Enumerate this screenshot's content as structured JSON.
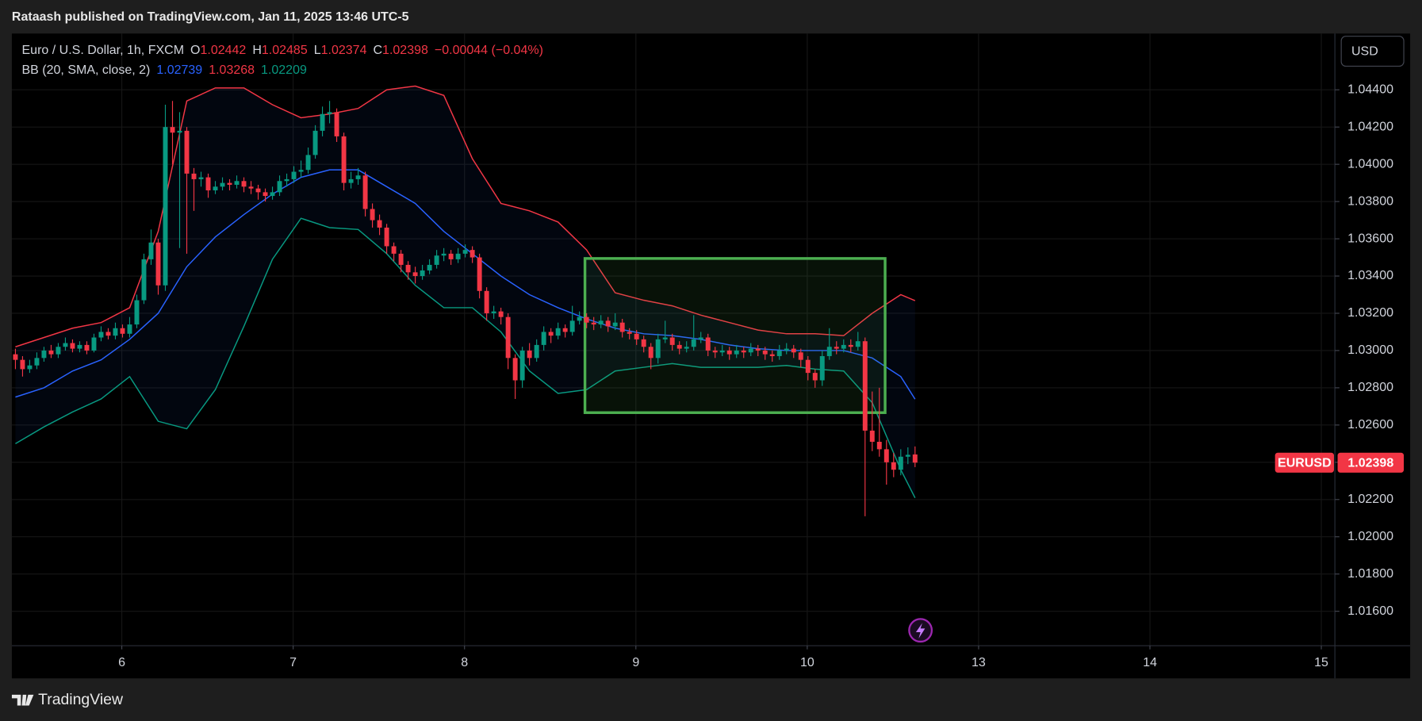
{
  "header": {
    "published": "Rataash published on TradingView.com, Jan 11, 2025 13:46 UTC-5"
  },
  "footer": {
    "brand": "TradingView"
  },
  "chart_data": {
    "type": "candlestick",
    "title": "Euro / U.S. Dollar, 1h, FXCM",
    "ohlc_labels": [
      "O",
      "H",
      "L",
      "C"
    ],
    "change": "−0.00044 (−0.04%)",
    "currency": "USD",
    "symbol": "EURUSD",
    "up_color": "#089981",
    "down_color": "#f23645",
    "xlim": [
      -0.5,
      184.8
    ],
    "xticks": [
      {
        "value": 14.9,
        "label": "6"
      },
      {
        "value": 38.9,
        "label": "7"
      },
      {
        "value": 62.9,
        "label": "8"
      },
      {
        "value": 86.9,
        "label": "9"
      },
      {
        "value": 110.9,
        "label": "10"
      },
      {
        "value": 134.9,
        "label": "13"
      },
      {
        "value": 158.9,
        "label": "14"
      },
      {
        "value": 182.9,
        "label": "15"
      }
    ],
    "ylim": [
      1.01415,
      1.04702
    ],
    "yticks": [
      {
        "value": 1.016,
        "label": "1.01600"
      },
      {
        "value": 1.018,
        "label": "1.01800"
      },
      {
        "value": 1.02,
        "label": "1.02000"
      },
      {
        "value": 1.022,
        "label": "1.02200"
      },
      {
        "value": 1.024,
        "label": "1.02400"
      },
      {
        "value": 1.026,
        "label": "1.02600"
      },
      {
        "value": 1.028,
        "label": "1.02800"
      },
      {
        "value": 1.03,
        "label": "1.03000"
      },
      {
        "value": 1.032,
        "label": "1.03200"
      },
      {
        "value": 1.034,
        "label": "1.03400"
      },
      {
        "value": 1.036,
        "label": "1.03600"
      },
      {
        "value": 1.038,
        "label": "1.03800"
      },
      {
        "value": 1.04,
        "label": "1.04000"
      },
      {
        "value": 1.042,
        "label": "1.04200"
      },
      {
        "value": 1.044,
        "label": "1.04400"
      }
    ],
    "grid": true,
    "open": [
      1.0298,
      1.0295,
      1.029,
      1.0292,
      1.0296,
      1.03,
      1.0298,
      1.0302,
      1.0304,
      1.0301,
      1.0303,
      1.03,
      1.0307,
      1.031,
      1.0308,
      1.0312,
      1.0309,
      1.0314,
      1.0327,
      1.0349,
      1.0358,
      1.0335,
      1.042,
      1.0417,
      1.0418,
      1.0395,
      1.0392,
      1.0393,
      1.0386,
      1.0388,
      1.039,
      1.0389,
      1.0391,
      1.0388,
      1.0387,
      1.0385,
      1.0383,
      1.0385,
      1.0391,
      1.0392,
      1.0396,
      1.0397,
      1.0405,
      1.0418,
      1.0427,
      1.0428,
      1.0415,
      1.039,
      1.0392,
      1.0394,
      1.0376,
      1.037,
      1.0366,
      1.0356,
      1.0352,
      1.0346,
      1.0342,
      1.034,
      1.0343,
      1.0346,
      1.0351,
      1.0352,
      1.0349,
      1.0352,
      1.0354,
      1.035,
      1.0332,
      1.032,
      1.0321,
      1.0318,
      1.0296,
      1.0284,
      1.03,
      1.0296,
      1.0303,
      1.031,
      1.0308,
      1.0312,
      1.031,
      1.0316,
      1.0318,
      1.0315,
      1.0314,
      1.0316,
      1.0313,
      1.0315,
      1.031,
      1.0309,
      1.0306,
      1.0302,
      1.0296,
      1.0306,
      1.0307,
      1.0303,
      1.0301,
      1.0302,
      1.0306,
      1.0307,
      1.03,
      1.0299,
      1.03,
      1.0298,
      1.03,
      1.0299,
      1.0301,
      1.03,
      1.0298,
      1.0297,
      1.03,
      1.0301,
      1.0299,
      1.0295,
      1.0288,
      1.0284,
      1.0297,
      1.0302,
      1.0301,
      1.0303,
      1.0302,
      1.0305,
      1.0257,
      1.0251,
      1.0247,
      1.024,
      1.0236,
      1.0243,
      1.02442
    ],
    "high": [
      1.0301,
      1.0297,
      1.0295,
      1.0299,
      1.0302,
      1.0303,
      1.0304,
      1.0307,
      1.0306,
      1.0305,
      1.0305,
      1.0309,
      1.0313,
      1.0312,
      1.0315,
      1.0314,
      1.0318,
      1.033,
      1.0352,
      1.0365,
      1.036,
      1.0432,
      1.0434,
      1.0428,
      1.042,
      1.0398,
      1.0396,
      1.0395,
      1.0391,
      1.0393,
      1.0392,
      1.0394,
      1.0393,
      1.0391,
      1.0389,
      1.0387,
      1.0388,
      1.0394,
      1.0395,
      1.0399,
      1.0402,
      1.0409,
      1.0421,
      1.0431,
      1.0434,
      1.043,
      1.0417,
      1.0396,
      1.0398,
      1.0396,
      1.0379,
      1.0373,
      1.0368,
      1.0358,
      1.0354,
      1.0348,
      1.0345,
      1.0346,
      1.0349,
      1.0354,
      1.0355,
      1.0354,
      1.0355,
      1.0357,
      1.0356,
      1.0352,
      1.0334,
      1.0324,
      1.0323,
      1.032,
      1.0298,
      1.0302,
      1.0304,
      1.0306,
      1.0313,
      1.0312,
      1.0315,
      1.0314,
      1.0324,
      1.0321,
      1.032,
      1.0318,
      1.0319,
      1.0318,
      1.032,
      1.0317,
      1.0312,
      1.0311,
      1.0308,
      1.0304,
      1.0309,
      1.0316,
      1.0309,
      1.0305,
      1.0305,
      1.0319,
      1.031,
      1.0309,
      1.0302,
      1.0303,
      1.0302,
      1.0303,
      1.0302,
      1.0304,
      1.0303,
      1.0302,
      1.03,
      1.0303,
      1.0304,
      1.0303,
      1.0301,
      1.0297,
      1.029,
      1.03,
      1.0312,
      1.0305,
      1.0306,
      1.0306,
      1.031,
      1.0307,
      1.0278,
      1.028,
      1.0252,
      1.0245,
      1.0247,
      1.0248,
      1.02485
    ],
    "low": [
      1.029,
      1.0286,
      1.0288,
      1.029,
      1.0294,
      1.0296,
      1.0296,
      1.03,
      1.0299,
      1.0299,
      1.0298,
      1.0299,
      1.0305,
      1.0306,
      1.0306,
      1.0307,
      1.0307,
      1.0312,
      1.0325,
      1.0346,
      1.033,
      1.0332,
      1.04,
      1.0355,
      1.0352,
      1.0375,
      1.0388,
      1.0382,
      1.0384,
      1.0386,
      1.0386,
      1.0387,
      1.0385,
      1.0384,
      1.0381,
      1.038,
      1.0381,
      1.0383,
      1.0388,
      1.039,
      1.0393,
      1.0395,
      1.0403,
      1.0415,
      1.0422,
      1.0412,
      1.0386,
      1.0387,
      1.0389,
      1.0372,
      1.0366,
      1.0362,
      1.0352,
      1.0348,
      1.0342,
      1.0338,
      1.0336,
      1.0338,
      1.0341,
      1.0344,
      1.0348,
      1.0346,
      1.0347,
      1.035,
      1.0347,
      1.0328,
      1.0316,
      1.0317,
      1.0314,
      1.029,
      1.0274,
      1.028,
      1.0292,
      1.0294,
      1.03,
      1.0304,
      1.0306,
      1.0307,
      1.0308,
      1.0314,
      1.0312,
      1.0311,
      1.0312,
      1.031,
      1.0311,
      1.0307,
      1.0306,
      1.0303,
      1.0299,
      1.029,
      1.0293,
      1.0304,
      1.03,
      1.0298,
      1.0299,
      1.03,
      1.0304,
      1.0297,
      1.0296,
      1.0297,
      1.0295,
      1.0296,
      1.0296,
      1.0297,
      1.0297,
      1.0295,
      1.0294,
      1.0295,
      1.0298,
      1.0296,
      1.0291,
      1.0284,
      1.028,
      1.0281,
      1.0295,
      1.0298,
      1.0299,
      1.0299,
      1.03,
      1.0211,
      1.0246,
      1.0243,
      1.0228,
      1.0232,
      1.0233,
      1.0239,
      1.02374
    ],
    "close": [
      1.0295,
      1.029,
      1.0292,
      1.0296,
      1.03,
      1.0298,
      1.0302,
      1.0304,
      1.0301,
      1.0303,
      1.03,
      1.0307,
      1.031,
      1.0308,
      1.0312,
      1.0309,
      1.0314,
      1.0327,
      1.0349,
      1.0358,
      1.0335,
      1.042,
      1.0417,
      1.0418,
      1.0395,
      1.0392,
      1.0393,
      1.0386,
      1.0388,
      1.039,
      1.0389,
      1.0391,
      1.0388,
      1.0387,
      1.0385,
      1.0383,
      1.0385,
      1.0391,
      1.0392,
      1.0396,
      1.0397,
      1.0405,
      1.0418,
      1.0427,
      1.0428,
      1.0415,
      1.039,
      1.0392,
      1.0394,
      1.0376,
      1.037,
      1.0366,
      1.0356,
      1.0352,
      1.0346,
      1.0342,
      1.034,
      1.0343,
      1.0346,
      1.0351,
      1.0352,
      1.0349,
      1.0352,
      1.0354,
      1.035,
      1.0332,
      1.032,
      1.0321,
      1.0318,
      1.0296,
      1.0284,
      1.03,
      1.0296,
      1.0303,
      1.031,
      1.0308,
      1.0312,
      1.031,
      1.0316,
      1.0318,
      1.0315,
      1.0314,
      1.0316,
      1.0313,
      1.0315,
      1.031,
      1.0309,
      1.0306,
      1.0302,
      1.0296,
      1.0306,
      1.0307,
      1.0303,
      1.0301,
      1.0302,
      1.0306,
      1.0307,
      1.03,
      1.0299,
      1.03,
      1.0298,
      1.03,
      1.0299,
      1.0301,
      1.03,
      1.0298,
      1.0297,
      1.03,
      1.0301,
      1.0299,
      1.0295,
      1.0288,
      1.0284,
      1.0297,
      1.0302,
      1.0301,
      1.0303,
      1.0302,
      1.0305,
      1.0257,
      1.0251,
      1.0247,
      1.024,
      1.0236,
      1.0243,
      1.0244,
      1.02398
    ],
    "indicator": {
      "label": "BB (20, SMA, close, 2)",
      "fill_color": "#2962ff",
      "x": [
        0,
        4,
        8,
        12,
        16,
        20,
        24,
        28,
        32,
        36,
        40,
        44,
        48,
        52,
        56,
        60,
        64,
        68,
        72,
        76,
        80,
        84,
        88,
        92,
        96,
        100,
        104,
        108,
        112,
        116,
        120,
        124,
        126
      ],
      "series": [
        {
          "color": "#2962ff",
          "values": [
            1.0275,
            1.028,
            1.0289,
            1.0295,
            1.0306,
            1.032,
            1.0345,
            1.0361,
            1.0373,
            1.0384,
            1.0393,
            1.0397,
            1.0397,
            1.0388,
            1.0379,
            1.0364,
            1.0352,
            1.034,
            1.033,
            1.0323,
            1.0317,
            1.0312,
            1.0309,
            1.0308,
            1.0306,
            1.0303,
            1.0301,
            1.03,
            1.03,
            1.03,
            1.0296,
            1.0286,
            1.02739
          ]
        },
        {
          "color": "#f23645",
          "values": [
            1.0302,
            1.0307,
            1.0312,
            1.0315,
            1.0323,
            1.0364,
            1.0434,
            1.0441,
            1.0441,
            1.0432,
            1.0425,
            1.0427,
            1.043,
            1.044,
            1.0442,
            1.0437,
            1.0403,
            1.0379,
            1.0375,
            1.0369,
            1.0354,
            1.0331,
            1.0327,
            1.0324,
            1.0319,
            1.0315,
            1.0311,
            1.0309,
            1.0309,
            1.0308,
            1.032,
            1.033,
            1.03268
          ]
        },
        {
          "color": "#089981",
          "values": [
            1.025,
            1.0259,
            1.0267,
            1.0274,
            1.0286,
            1.0262,
            1.0258,
            1.0279,
            1.0313,
            1.0349,
            1.0371,
            1.0366,
            1.0365,
            1.0352,
            1.0335,
            1.0323,
            1.0323,
            1.031,
            1.0289,
            1.0277,
            1.0279,
            1.0289,
            1.0291,
            1.0293,
            1.0291,
            1.0291,
            1.0291,
            1.0292,
            1.029,
            1.0289,
            1.0272,
            1.0236,
            1.02209
          ]
        }
      ]
    }
  }
}
